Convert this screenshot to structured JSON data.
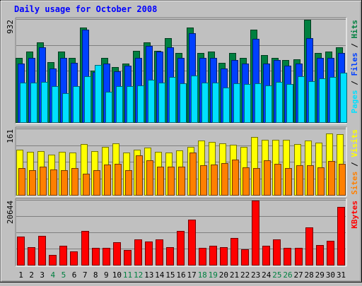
{
  "chart_data": [
    {
      "type": "bar",
      "panel": "hits-files-pages",
      "title": "Daily usage for October 2008",
      "categories": [
        "1",
        "2",
        "3",
        "4",
        "5",
        "6",
        "7",
        "8",
        "9",
        "10",
        "11",
        "12",
        "13",
        "14",
        "15",
        "16",
        "17",
        "18",
        "19",
        "20",
        "21",
        "22",
        "23",
        "24",
        "25",
        "26",
        "27",
        "28",
        "29",
        "30",
        "31"
      ],
      "weekend_days": [
        "4",
        "5",
        "11",
        "12",
        "18",
        "19",
        "25",
        "26"
      ],
      "ymax_label": "932",
      "ylim": [
        0,
        932
      ],
      "ylabel_parts": [
        "Pages",
        "Files",
        "Hits"
      ],
      "series": [
        {
          "name": "Hits",
          "color": "#008040",
          "values": [
            587,
            643,
            727,
            552,
            643,
            587,
            859,
            475,
            587,
            507,
            534,
            654,
            727,
            654,
            767,
            634,
            859,
            634,
            643,
            543,
            634,
            587,
            841,
            614,
            587,
            567,
            577,
            932,
            634,
            643,
            681
          ]
        },
        {
          "name": "Files",
          "color": "#0040ff",
          "values": [
            534,
            587,
            681,
            493,
            587,
            544,
            841,
            458,
            534,
            468,
            515,
            587,
            698,
            643,
            681,
            587,
            810,
            587,
            587,
            493,
            567,
            534,
            759,
            534,
            567,
            515,
            534,
            767,
            587,
            587,
            634
          ]
        },
        {
          "name": "Pages",
          "color": "#00e0ff",
          "values": [
            362,
            362,
            373,
            330,
            266,
            330,
            419,
            525,
            279,
            335,
            330,
            336,
            390,
            362,
            417,
            355,
            428,
            362,
            362,
            319,
            357,
            354,
            357,
            336,
            373,
            354,
            419,
            379,
            404,
            412,
            451
          ]
        }
      ]
    },
    {
      "type": "bar",
      "panel": "sites-visits",
      "categories": [
        "1",
        "2",
        "3",
        "4",
        "5",
        "6",
        "7",
        "8",
        "9",
        "10",
        "11",
        "12",
        "13",
        "14",
        "15",
        "16",
        "17",
        "18",
        "19",
        "20",
        "21",
        "22",
        "23",
        "24",
        "25",
        "26",
        "27",
        "28",
        "29",
        "30",
        "31"
      ],
      "ymax_label": "161",
      "ylim": [
        0,
        161
      ],
      "ylabel_parts": [
        "Sites",
        "Visits"
      ],
      "series": [
        {
          "name": "Visits",
          "color": "#ffff00",
          "values": [
            112,
            107,
            108,
            99,
            106,
            104,
            125,
            108,
            118,
            126,
            104,
            111,
            117,
            106,
            104,
            109,
            118,
            133,
            131,
            126,
            123,
            119,
            142,
            136,
            135,
            136,
            125,
            133,
            129,
            151,
            149
          ]
        },
        {
          "name": "Sites",
          "color": "#ff8000",
          "values": [
            66,
            62,
            71,
            63,
            62,
            66,
            53,
            62,
            75,
            77,
            62,
            97,
            86,
            71,
            70,
            71,
            105,
            74,
            76,
            79,
            88,
            68,
            66,
            86,
            77,
            66,
            73,
            74,
            68,
            84,
            77
          ]
        }
      ]
    },
    {
      "type": "bar",
      "panel": "kbytes",
      "categories": [
        "1",
        "2",
        "3",
        "4",
        "5",
        "6",
        "7",
        "8",
        "9",
        "10",
        "11",
        "12",
        "13",
        "14",
        "15",
        "16",
        "17",
        "18",
        "19",
        "20",
        "21",
        "22",
        "23",
        "24",
        "25",
        "26",
        "27",
        "28",
        "29",
        "30",
        "31"
      ],
      "ymax_label": "20644",
      "ylim": [
        0,
        20644
      ],
      "ylabel_parts": [
        "KBytes"
      ],
      "series": [
        {
          "name": "KBytes",
          "color": "#ff0000",
          "values": [
            9100,
            5900,
            9350,
            3400,
            6200,
            4600,
            11100,
            5600,
            5500,
            7400,
            4900,
            8400,
            7600,
            8300,
            5800,
            11000,
            14500,
            5600,
            6200,
            5800,
            8700,
            5200,
            20644,
            6200,
            8300,
            5600,
            5700,
            12100,
            6600,
            7900,
            18700
          ]
        }
      ]
    }
  ],
  "colors": {
    "background": "#c0c0c0",
    "weekday_label": "#000000",
    "weekend_label": "#008040",
    "title": "#0000ff",
    "gridline": "#808080"
  }
}
